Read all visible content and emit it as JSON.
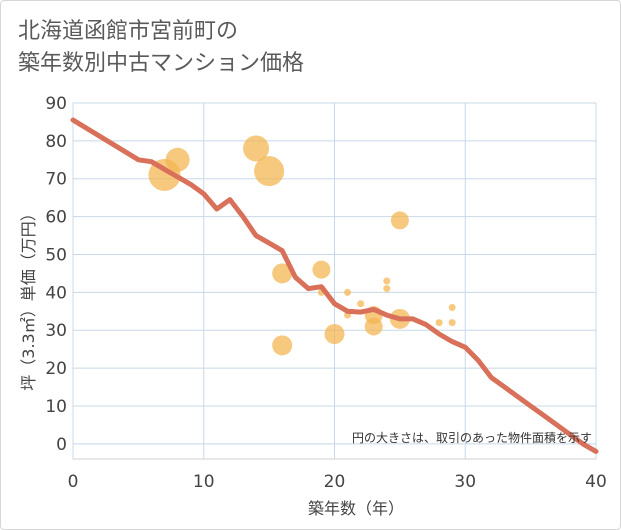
{
  "title": {
    "line1": "北海道函館市宮前町の",
    "line2": "築年数別中古マンション価格"
  },
  "chart_data": {
    "type": "scatter",
    "title": "北海道函館市宮前町の築年数別中古マンション価格",
    "xlabel": "築年数（年）",
    "ylabel": "坪（3.3㎡）単価（万円）",
    "xlim": [
      0,
      40
    ],
    "ylim": [
      -4,
      90
    ],
    "xticks": [
      0,
      10,
      20,
      30,
      40
    ],
    "yticks": [
      0,
      10,
      20,
      30,
      40,
      50,
      60,
      70,
      80,
      90
    ],
    "grid": true,
    "note": "円の大きさは、取引のあった物件面積を示す",
    "colors": {
      "bubble": "#f2b44e",
      "line": "#d9705a",
      "grid": "#c8d8e8"
    },
    "bubbles": [
      {
        "x": 7,
        "y": 71,
        "size": 16
      },
      {
        "x": 8,
        "y": 75,
        "size": 12
      },
      {
        "x": 14,
        "y": 78,
        "size": 13
      },
      {
        "x": 15,
        "y": 72,
        "size": 15
      },
      {
        "x": 16,
        "y": 45,
        "size": 10
      },
      {
        "x": 16,
        "y": 26,
        "size": 10
      },
      {
        "x": 19,
        "y": 46,
        "size": 9
      },
      {
        "x": 19,
        "y": 40,
        "size": 3.5
      },
      {
        "x": 20,
        "y": 29,
        "size": 10
      },
      {
        "x": 21,
        "y": 40,
        "size": 3.5
      },
      {
        "x": 21,
        "y": 34,
        "size": 3.5
      },
      {
        "x": 22,
        "y": 37,
        "size": 3.5
      },
      {
        "x": 23,
        "y": 34,
        "size": 9
      },
      {
        "x": 23,
        "y": 31,
        "size": 9
      },
      {
        "x": 24,
        "y": 43,
        "size": 3.5
      },
      {
        "x": 24,
        "y": 41,
        "size": 3.5
      },
      {
        "x": 25,
        "y": 59,
        "size": 9
      },
      {
        "x": 25,
        "y": 33,
        "size": 10
      },
      {
        "x": 28,
        "y": 32,
        "size": 3.5
      },
      {
        "x": 29,
        "y": 36,
        "size": 3.5
      },
      {
        "x": 29,
        "y": 32,
        "size": 3.5
      }
    ],
    "trend": {
      "x": [
        0,
        5,
        6,
        7,
        8,
        9,
        10,
        11,
        12,
        13,
        14,
        15,
        16,
        17,
        18,
        19,
        20,
        21,
        22,
        23,
        24,
        25,
        26,
        27,
        28,
        29,
        30,
        31,
        32,
        33,
        34,
        35,
        36,
        37,
        38,
        39,
        40
      ],
      "y": [
        85.5,
        75,
        74.5,
        72.5,
        70.5,
        68.5,
        66,
        62,
        64.5,
        60,
        55,
        53,
        51,
        44,
        41,
        41.5,
        37,
        35,
        34.8,
        35.5,
        34,
        33,
        33,
        31.5,
        29,
        27,
        25.5,
        22,
        17.5,
        15,
        12.5,
        10,
        7.5,
        5,
        2.5,
        0,
        -2
      ]
    }
  }
}
